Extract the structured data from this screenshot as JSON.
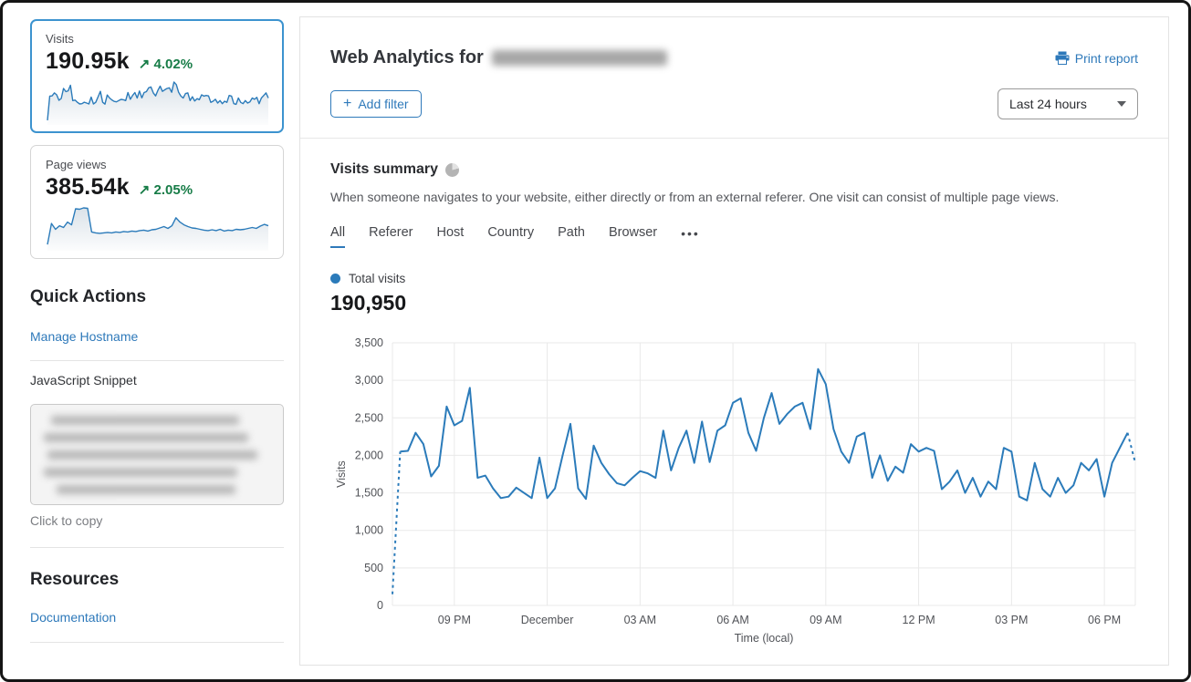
{
  "sidebar": {
    "visits_card": {
      "label": "Visits",
      "value": "190.95k",
      "trend_arrow": "↗",
      "delta": "4.02%"
    },
    "pageviews_card": {
      "label": "Page views",
      "value": "385.54k",
      "trend_arrow": "↗",
      "delta": "2.05%"
    },
    "quick_actions": {
      "title": "Quick Actions",
      "manage_hostname_link": "Manage Hostname",
      "snippet_label": "JavaScript Snippet",
      "copy_hint": "Click to copy"
    },
    "resources": {
      "title": "Resources",
      "documentation_link": "Documentation"
    }
  },
  "header": {
    "title_prefix": "Web Analytics for",
    "print_report_label": "Print report",
    "add_filter_plus": "+",
    "add_filter_label": "Add filter",
    "time_range_value": "Last 24 hours"
  },
  "summary": {
    "title": "Visits summary",
    "description": "When someone navigates to your website, either directly or from an external referer. One visit can consist of multiple page views.",
    "tabs": [
      "All",
      "Referer",
      "Host",
      "Country",
      "Path",
      "Browser"
    ],
    "active_tab": "All",
    "more_tab": "•••",
    "legend_label": "Total visits",
    "total_value": "190,950"
  },
  "colors": {
    "line_blue": "#2b7bba",
    "link_blue": "#2e79ba",
    "delta_green": "#177c47",
    "selected_card_border": "#3c93cf",
    "grid": "#e9e9e9"
  },
  "chart_data": [
    {
      "type": "line",
      "name": "visits-over-time",
      "title": "Total visits",
      "xlabel": "Time (local)",
      "ylabel": "Visits",
      "ylim": [
        0,
        3500
      ],
      "yticks": [
        0,
        500,
        1000,
        1500,
        2000,
        2500,
        3000,
        3500
      ],
      "x_interval_minutes": 15,
      "xtick_labels": [
        "09 PM",
        "December",
        "03 AM",
        "06 AM",
        "09 AM",
        "12 PM",
        "03 PM",
        "06 PM"
      ],
      "xtick_indices": [
        8,
        20,
        32,
        44,
        56,
        68,
        80,
        92
      ],
      "dashed_first_segment": true,
      "dashed_last_segment": true,
      "grid": true,
      "legend_position": "top-left",
      "values": [
        150,
        2050,
        2060,
        2300,
        2150,
        1720,
        1860,
        2650,
        2400,
        2460,
        2900,
        1700,
        1730,
        1560,
        1430,
        1450,
        1570,
        1500,
        1430,
        1970,
        1430,
        1560,
        2000,
        2420,
        1560,
        1420,
        2130,
        1900,
        1750,
        1630,
        1600,
        1700,
        1790,
        1760,
        1700,
        2330,
        1800,
        2100,
        2330,
        1900,
        2450,
        1910,
        2330,
        2400,
        2700,
        2760,
        2300,
        2060,
        2500,
        2830,
        2420,
        2550,
        2650,
        2700,
        2350,
        3150,
        2950,
        2350,
        2050,
        1900,
        2250,
        2300,
        1700,
        2000,
        1660,
        1850,
        1770,
        2150,
        2050,
        2100,
        2060,
        1550,
        1650,
        1800,
        1500,
        1700,
        1450,
        1650,
        1550,
        2100,
        2050,
        1450,
        1400,
        1900,
        1550,
        1450,
        1700,
        1500,
        1600,
        1900,
        1800,
        1950,
        1450,
        1900,
        2100,
        2300,
        1900
      ]
    },
    {
      "type": "area",
      "name": "visits-sparkline",
      "title": "Visits last 24h (card sparkline)",
      "values": [
        150,
        2050,
        2060,
        2300,
        2150,
        1720,
        1860,
        2650,
        2400,
        2460,
        2900,
        1700,
        1730,
        1560,
        1430,
        1450,
        1570,
        1500,
        1430,
        1970,
        1430,
        1560,
        2000,
        2420,
        1560,
        1420,
        2130,
        1900,
        1750,
        1630,
        1600,
        1700,
        1790,
        1760,
        1700,
        2330,
        1800,
        2100,
        2330,
        1900,
        2450,
        1910,
        2330,
        2400,
        2700,
        2760,
        2300,
        2060,
        2500,
        2830,
        2420,
        2550,
        2650,
        2700,
        2350,
        3150,
        2950,
        2350,
        2050,
        1900,
        2250,
        2300,
        1700,
        2000,
        1660,
        1850,
        1770,
        2150,
        2050,
        2100,
        2060,
        1550,
        1650,
        1800,
        1500,
        1700,
        1450,
        1650,
        1550,
        2100,
        2050,
        1450,
        1400,
        1900,
        1550,
        1450,
        1700,
        1500,
        1600,
        1900,
        1800,
        1950,
        1450,
        1900,
        2100,
        2300,
        1900
      ]
    },
    {
      "type": "area",
      "name": "pageviews-sparkline",
      "title": "Page views last 24h (card sparkline, relative units)",
      "values": [
        8,
        55,
        42,
        50,
        46,
        58,
        52,
        88,
        87,
        90,
        89,
        36,
        34,
        33,
        34,
        35,
        34,
        36,
        35,
        37,
        36,
        38,
        37,
        39,
        40,
        38,
        41,
        42,
        45,
        48,
        44,
        50,
        68,
        58,
        52,
        48,
        45,
        44,
        42,
        40,
        39,
        41,
        39,
        42,
        38,
        40,
        39,
        42,
        41,
        42,
        44,
        46,
        44,
        49,
        53,
        50
      ]
    }
  ]
}
